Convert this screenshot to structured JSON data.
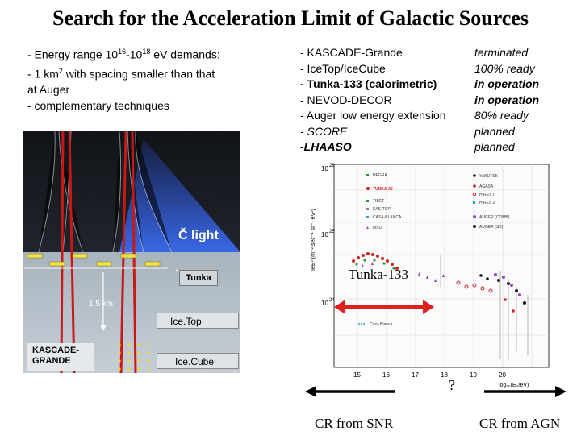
{
  "title": "Search for the Acceleration Limit of Galactic Sources",
  "left_bullets": {
    "line1_prefix": "- Energy range 10",
    "line1_exp1": "16",
    "line1_mid": "-10",
    "line1_exp2": "18",
    "line1_suffix": " eV demands:",
    "line2_prefix": "- 1 km",
    "line2_sup": "2",
    "line2_suffix": " with spacing smaller than that",
    "line3": "at Auger",
    "line4": "- complementary techniques"
  },
  "experiments": [
    {
      "name": "- KASCADE-Grande",
      "status": "terminated"
    },
    {
      "name": "- IceTop/IceCube",
      "status": "100% ready"
    },
    {
      "name": "- Tunka-133 (calorimetric)",
      "status": "in operation"
    },
    {
      "name": "- NEVOD-DECOR",
      "status": "in operation"
    },
    {
      "name": "- Auger low energy extension",
      "status": "80% ready"
    },
    {
      "name": "- SCORE",
      "status": "planned"
    },
    {
      "name": "-LHAASO",
      "status": "planned"
    }
  ],
  "illustration": {
    "cherenkov_label": "Č light",
    "tunka_label": "Tunka",
    "depth_label": "1.5 km",
    "icetop_label": "Ice.Top",
    "icecube_label": "Ice.Cube",
    "kascade_label": "KASCADE-\nGRANDE"
  },
  "spectrum_plot": {
    "y_tick_top": "10",
    "y_tick_top_exp": "26",
    "y_tick_mid": "10",
    "y_tick_mid_exp": "25",
    "y_tick_low": "10",
    "y_tick_low_exp": "24",
    "y_axis_label": "IeE³ (m⁻² sec⁻¹ sr⁻¹ eV²)",
    "x_ticks": [
      "15",
      "16",
      "17",
      "18",
      "19",
      "20"
    ],
    "x_axis_label": "log₁₀(E₀/eV)",
    "legend_left": [
      "HEGRA",
      "TUNKA-25",
      "TIBET",
      "EAS-TOP",
      "CASA-BLANCA",
      "MSU"
    ],
    "legend_right": [
      "YAKUTSK",
      "AGASA",
      "HIRES I",
      "HIRES 2",
      "AUGER (COMB)",
      "AUGER (SD)"
    ],
    "extra_legend": "Casa Blanca",
    "colors": {
      "red": "#d42020",
      "purple": "#a040c0",
      "green": "#2a9a2a",
      "cyan": "#20a8c8",
      "black": "#111111",
      "gray": "#888888"
    }
  },
  "annotations": {
    "tunka_label": "Tunka-133",
    "question": "?",
    "cr_snr": "CR from SNR",
    "cr_agn": "CR from AGN"
  }
}
